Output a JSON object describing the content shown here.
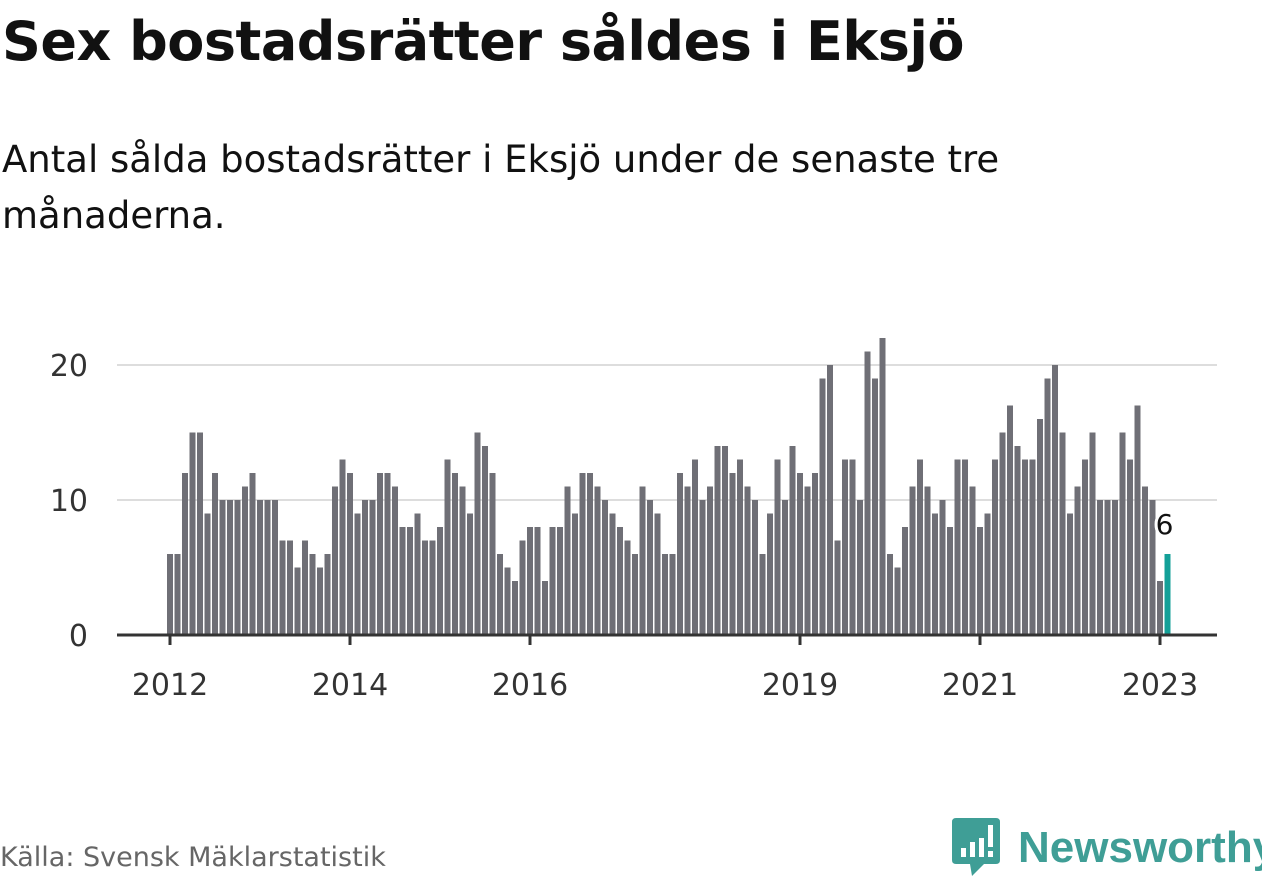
{
  "title": "Sex bostadsrätter såldes i Eksjö",
  "subtitle": "Antal sålda bostadsrätter i Eksjö under de senaste tre månaderna.",
  "source": "Källa: Svensk Mäklarstatistik",
  "logo": {
    "text": "Newsworthy",
    "icon": "chart-speech-bubble-icon",
    "color": "#3f9e96"
  },
  "colors": {
    "bar": "#6f6f76",
    "highlight": "#14a098",
    "grid": "#dddddd",
    "axis": "#333333"
  },
  "chart_data": {
    "type": "bar",
    "title": "Sex bostadsrätter såldes i Eksjö",
    "xlabel": "",
    "ylabel": "",
    "ylim": [
      0,
      22
    ],
    "yticks": [
      0,
      10,
      20
    ],
    "grid": true,
    "start": "2012-01",
    "end": "2023-02",
    "frequency": "monthly",
    "xticks": [
      {
        "label": "2012",
        "index": 0
      },
      {
        "label": "2014",
        "index": 24
      },
      {
        "label": "2016",
        "index": 48
      },
      {
        "label": "2019",
        "index": 84
      },
      {
        "label": "2021",
        "index": 108
      },
      {
        "label": "2023",
        "index": 132
      }
    ],
    "values": [
      6,
      6,
      12,
      15,
      15,
      9,
      12,
      10,
      10,
      10,
      11,
      12,
      10,
      10,
      10,
      7,
      7,
      5,
      7,
      6,
      5,
      6,
      11,
      13,
      12,
      9,
      10,
      10,
      12,
      12,
      11,
      8,
      8,
      9,
      7,
      7,
      8,
      13,
      12,
      11,
      9,
      15,
      14,
      12,
      6,
      5,
      4,
      7,
      8,
      8,
      4,
      8,
      8,
      11,
      9,
      12,
      12,
      11,
      10,
      9,
      8,
      7,
      6,
      11,
      10,
      9,
      6,
      6,
      12,
      11,
      13,
      10,
      11,
      14,
      14,
      12,
      13,
      11,
      10,
      6,
      9,
      13,
      10,
      14,
      12,
      11,
      12,
      19,
      20,
      7,
      13,
      13,
      10,
      21,
      19,
      22,
      6,
      5,
      8,
      11,
      13,
      11,
      9,
      10,
      8,
      13,
      13,
      11,
      8,
      9,
      13,
      15,
      17,
      14,
      13,
      13,
      16,
      19,
      20,
      15,
      9,
      11,
      13,
      15,
      10,
      10,
      10,
      15,
      13,
      17,
      11,
      10,
      4,
      6
    ],
    "highlight_last": true,
    "annotation": {
      "label": "6",
      "index": 133
    }
  }
}
